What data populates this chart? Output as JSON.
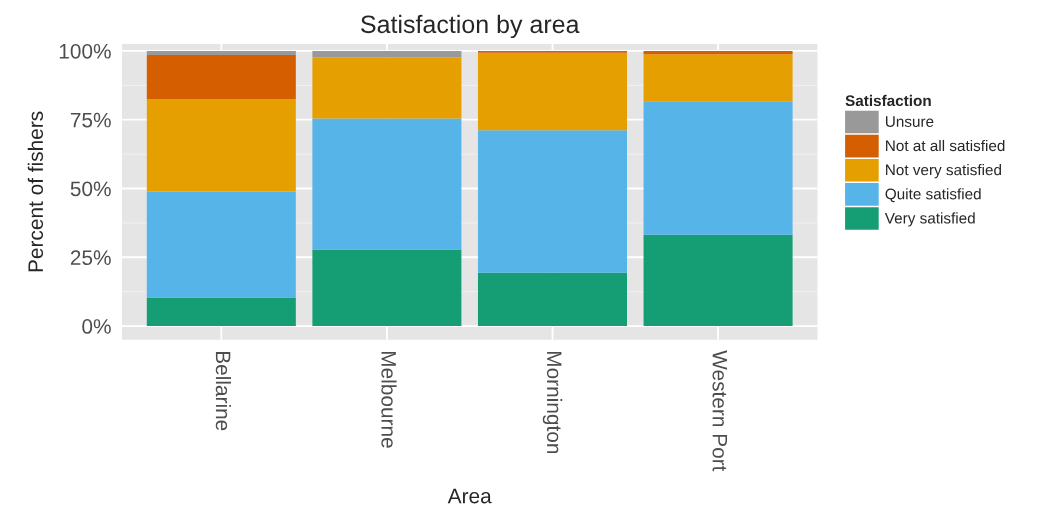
{
  "chart_data": {
    "type": "bar",
    "stacked": true,
    "title": "Satisfaction by area",
    "xlabel": "Area",
    "ylabel": "Percent of fishers",
    "legend_title": "Satisfaction",
    "legend": "right",
    "grid": true,
    "categories": [
      "Bellarine",
      "Melbourne",
      "Mornington",
      "Western Port"
    ],
    "series": [
      {
        "name": "Very satisfied",
        "color": "#159e74",
        "values": [
          10.4,
          27.8,
          19.4,
          33.2
        ]
      },
      {
        "name": "Quite satisfied",
        "color": "#56b4e9",
        "values": [
          38.5,
          47.6,
          51.8,
          48.5
        ]
      },
      {
        "name": "Not very satisfied",
        "color": "#e69f00",
        "values": [
          33.5,
          22.2,
          28.1,
          17.1
        ]
      },
      {
        "name": "Not at all satisfied",
        "color": "#d55e00",
        "values": [
          16.1,
          0,
          0.7,
          1.2
        ]
      },
      {
        "name": "Unsure",
        "color": "#999999",
        "values": [
          1.5,
          2.4,
          0,
          0
        ]
      }
    ],
    "ylim": [
      -5,
      102.5
    ],
    "yticks": [
      {
        "value": 0,
        "label": "0%"
      },
      {
        "value": 25,
        "label": "25%"
      },
      {
        "value": 50,
        "label": "50%"
      },
      {
        "value": 75,
        "label": "75%"
      },
      {
        "value": 100,
        "label": "100%"
      }
    ]
  }
}
